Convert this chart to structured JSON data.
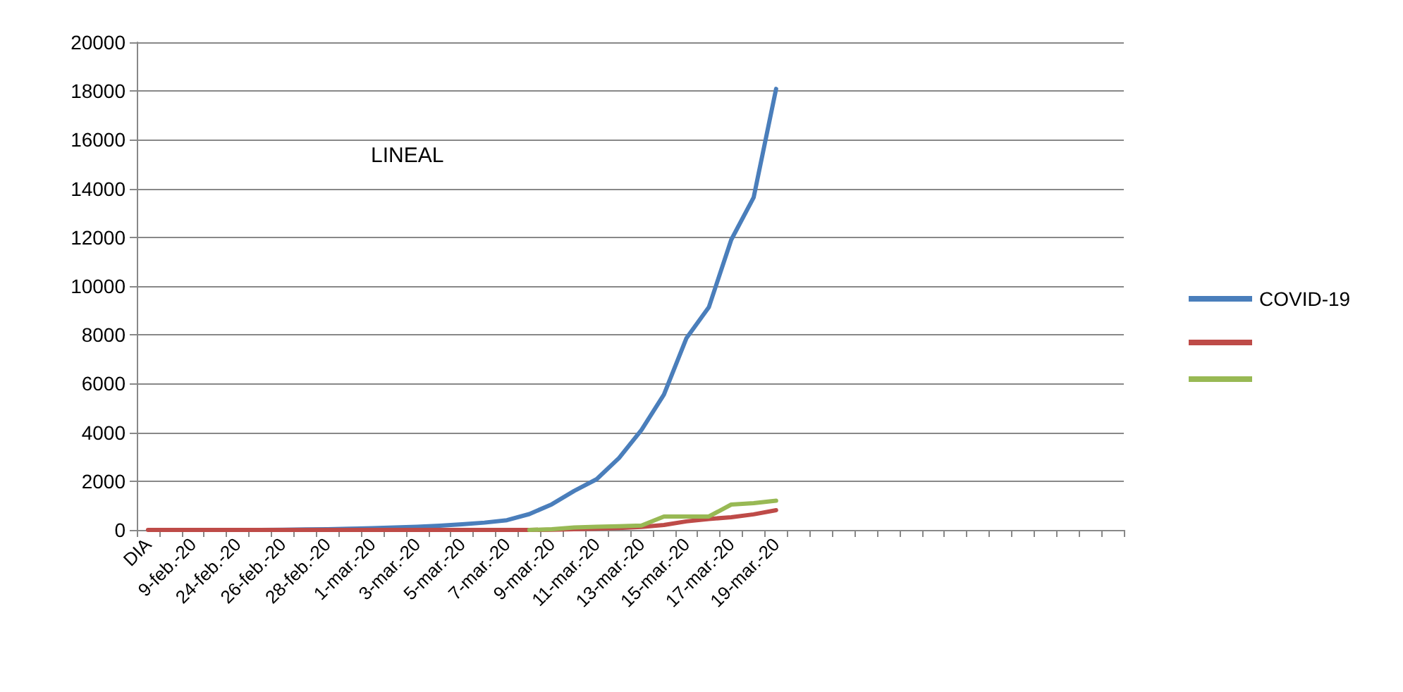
{
  "chart_data": {
    "type": "line",
    "title": "LINEAL",
    "categories": [
      "DIA",
      null,
      "9-feb.-20",
      null,
      "24-feb.-20",
      null,
      "26-feb.-20",
      null,
      "28-feb.-20",
      null,
      "1-mar.-20",
      null,
      "3-mar.-20",
      null,
      "5-mar.-20",
      null,
      "7-mar.-20",
      null,
      "9-mar.-20",
      null,
      "11-mar.-20",
      null,
      "13-mar.-20",
      null,
      "15-mar.-20",
      null,
      "17-mar.-20",
      null,
      "19-mar.-20",
      null,
      null,
      null,
      null,
      null,
      null,
      null,
      null,
      null,
      null,
      null,
      null,
      null,
      null,
      null
    ],
    "series": [
      {
        "name": "COVID-19",
        "color": "#4a7ebb",
        "values": [
          null,
          null,
          null,
          null,
          null,
          0,
          10,
          20,
          30,
          50,
          70,
          100,
          130,
          170,
          230,
          300,
          400,
          650,
          1050,
          1600,
          2080,
          2950,
          4100,
          5550,
          7860,
          9130,
          11900,
          13640,
          18090,
          null,
          null,
          null,
          null,
          null,
          null,
          null,
          null,
          null,
          null,
          null,
          null,
          null,
          null,
          null
        ]
      },
      {
        "color": "#be4b48",
        "values": [
          0,
          0,
          0,
          0,
          0,
          0,
          0,
          0,
          0,
          0,
          0,
          0,
          0,
          0,
          0,
          0,
          0,
          0,
          10,
          30,
          50,
          80,
          120,
          200,
          350,
          450,
          520,
          640,
          810,
          null,
          null,
          null,
          null,
          null,
          null,
          null,
          null,
          null,
          null,
          null,
          null,
          null,
          null,
          null
        ]
      },
      {
        "color": "#98b954",
        "values": [
          null,
          null,
          null,
          null,
          null,
          null,
          null,
          null,
          null,
          null,
          null,
          null,
          null,
          null,
          null,
          null,
          null,
          0,
          30,
          100,
          130,
          150,
          180,
          550,
          550,
          550,
          1040,
          1100,
          1200,
          null,
          null,
          null,
          null,
          null,
          null,
          null,
          null,
          null,
          null,
          null,
          null,
          null,
          null,
          null
        ]
      }
    ],
    "ylim": [
      0,
      20000
    ],
    "yticks": [
      0,
      2000,
      4000,
      6000,
      8000,
      10000,
      12000,
      14000,
      16000,
      18000,
      20000
    ],
    "grid": "y",
    "legend": "right",
    "marker": "none",
    "line_style": "solid"
  }
}
